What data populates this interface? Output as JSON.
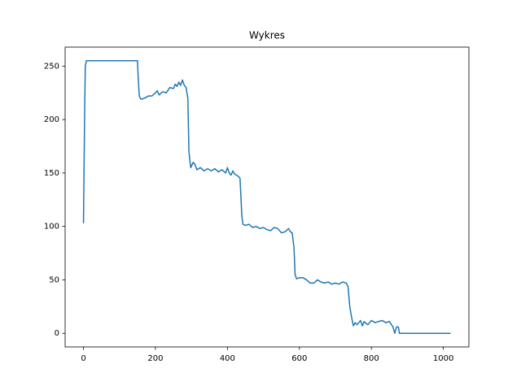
{
  "chart_data": {
    "type": "line",
    "title": "Wykres",
    "series": [
      {
        "color": "#1f77b4",
        "x": [
          0,
          3,
          5,
          8,
          150,
          152,
          155,
          160,
          170,
          180,
          190,
          200,
          205,
          210,
          220,
          230,
          240,
          250,
          255,
          260,
          265,
          270,
          275,
          280,
          285,
          290,
          293,
          298,
          305,
          310,
          315,
          325,
          335,
          345,
          355,
          365,
          375,
          385,
          395,
          400,
          405,
          410,
          415,
          420,
          430,
          435,
          440,
          443,
          450,
          460,
          470,
          480,
          490,
          500,
          510,
          520,
          530,
          540,
          550,
          560,
          570,
          575,
          580,
          585,
          588,
          592,
          600,
          610,
          620,
          630,
          640,
          650,
          660,
          670,
          680,
          690,
          700,
          710,
          720,
          730,
          735,
          740,
          745,
          750,
          755,
          760,
          770,
          775,
          780,
          790,
          800,
          810,
          820,
          830,
          840,
          850,
          860,
          865,
          870,
          875,
          878,
          1020
        ],
        "values": [
          103,
          200,
          250,
          255,
          255,
          240,
          222,
          219,
          220,
          222,
          222,
          225,
          227,
          223,
          226,
          225,
          230,
          229,
          233,
          231,
          235,
          232,
          237,
          232,
          230,
          220,
          170,
          155,
          160,
          158,
          153,
          155,
          152,
          154,
          152,
          154,
          151,
          153,
          150,
          155,
          150,
          148,
          152,
          149,
          147,
          145,
          110,
          102,
          101,
          102,
          99,
          100,
          98,
          99,
          97,
          96,
          99,
          98,
          94,
          95,
          98,
          95,
          94,
          80,
          55,
          51,
          52,
          52,
          50,
          47,
          47,
          50,
          48,
          47,
          48,
          46,
          47,
          46,
          48,
          47,
          44,
          25,
          15,
          7,
          10,
          8,
          12,
          7,
          11,
          8,
          12,
          10,
          11,
          12,
          10,
          11,
          6,
          0,
          6,
          6,
          0,
          0
        ]
      }
    ],
    "xlim": [
      -51,
      1071
    ],
    "ylim": [
      -12.75,
      267.75
    ],
    "xticks": [
      0,
      200,
      400,
      600,
      800,
      1000
    ],
    "yticks": [
      0,
      50,
      100,
      150,
      200,
      250
    ],
    "grid": false
  }
}
